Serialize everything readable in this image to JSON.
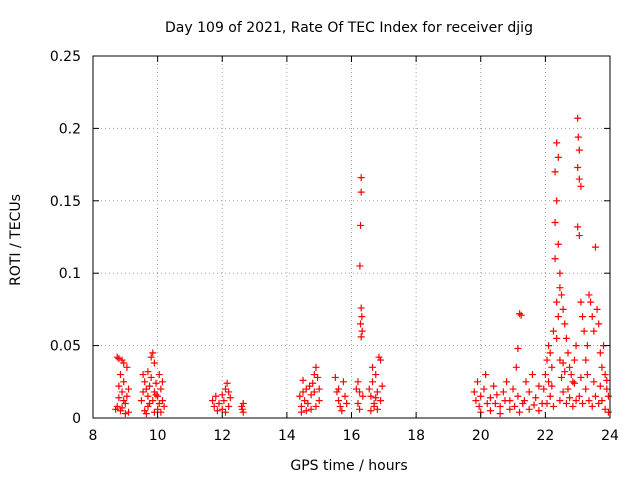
{
  "chart_data": {
    "type": "scatter",
    "title": "Day 109 of 2021, Rate Of TEC Index for receiver djig",
    "xlabel": "GPS time / hours",
    "ylabel": "ROTI / TECUs",
    "xlim": [
      8,
      24
    ],
    "ylim": [
      0,
      0.25
    ],
    "xticks": [
      8,
      10,
      12,
      14,
      16,
      18,
      20,
      22,
      24
    ],
    "xtick_labels": [
      "8",
      "10",
      "12",
      "14",
      "16",
      "18",
      "20",
      "22",
      "24"
    ],
    "yticks": [
      0,
      0.05,
      0.1,
      0.15,
      0.2,
      0.25
    ],
    "ytick_labels": [
      "0",
      "0.05",
      "0.1",
      "0.15",
      "0.2",
      "0.25"
    ],
    "grid": true,
    "marker": "+",
    "color": "#ff0000",
    "series": [
      {
        "name": "ROTI",
        "points": [
          [
            8.75,
            0.042
          ],
          [
            8.8,
            0.041
          ],
          [
            8.9,
            0.04
          ],
          [
            8.95,
            0.038
          ],
          [
            8.85,
            0.03
          ],
          [
            8.8,
            0.022
          ],
          [
            8.9,
            0.018
          ],
          [
            8.95,
            0.012
          ],
          [
            8.75,
            0.008
          ],
          [
            8.85,
            0.005
          ],
          [
            9.0,
            0.01
          ],
          [
            9.05,
            0.015
          ],
          [
            9.1,
            0.02
          ],
          [
            8.8,
            0.014
          ],
          [
            8.9,
            0.007
          ],
          [
            9.0,
            0.003
          ],
          [
            8.95,
            0.025
          ],
          [
            9.05,
            0.035
          ],
          [
            8.7,
            0.006
          ],
          [
            9.1,
            0.004
          ],
          [
            9.55,
            0.03
          ],
          [
            9.6,
            0.025
          ],
          [
            9.65,
            0.02
          ],
          [
            9.7,
            0.015
          ],
          [
            9.75,
            0.01
          ],
          [
            9.8,
            0.042
          ],
          [
            9.85,
            0.045
          ],
          [
            9.9,
            0.038
          ],
          [
            9.6,
            0.005
          ],
          [
            9.7,
            0.008
          ],
          [
            9.75,
            0.022
          ],
          [
            9.8,
            0.028
          ],
          [
            9.85,
            0.012
          ],
          [
            9.9,
            0.018
          ],
          [
            9.95,
            0.024
          ],
          [
            10.0,
            0.015
          ],
          [
            10.05,
            0.01
          ],
          [
            10.1,
            0.02
          ],
          [
            10.15,
            0.012
          ],
          [
            10.2,
            0.008
          ],
          [
            10.15,
            0.025
          ],
          [
            10.05,
            0.03
          ],
          [
            9.5,
            0.012
          ],
          [
            9.55,
            0.018
          ],
          [
            9.65,
            0.003
          ],
          [
            9.9,
            0.004
          ],
          [
            10.0,
            0.006
          ],
          [
            10.1,
            0.004
          ],
          [
            9.7,
            0.032
          ],
          [
            9.95,
            0.016
          ],
          [
            11.7,
            0.012
          ],
          [
            11.75,
            0.008
          ],
          [
            11.8,
            0.015
          ],
          [
            11.9,
            0.01
          ],
          [
            12.0,
            0.016
          ],
          [
            12.05,
            0.012
          ],
          [
            12.1,
            0.02
          ],
          [
            12.15,
            0.024
          ],
          [
            12.2,
            0.018
          ],
          [
            12.25,
            0.014
          ],
          [
            11.85,
            0.005
          ],
          [
            12.0,
            0.006
          ],
          [
            12.1,
            0.004
          ],
          [
            12.2,
            0.008
          ],
          [
            12.65,
            0.01
          ],
          [
            12.62,
            0.006
          ],
          [
            12.6,
            0.008
          ],
          [
            12.65,
            0.004
          ],
          [
            14.4,
            0.015
          ],
          [
            14.45,
            0.008
          ],
          [
            14.5,
            0.018
          ],
          [
            14.55,
            0.012
          ],
          [
            14.6,
            0.02
          ],
          [
            14.65,
            0.01
          ],
          [
            14.7,
            0.022
          ],
          [
            14.75,
            0.016
          ],
          [
            14.8,
            0.024
          ],
          [
            14.85,
            0.03
          ],
          [
            14.9,
            0.035
          ],
          [
            14.95,
            0.028
          ],
          [
            15.0,
            0.02
          ],
          [
            14.45,
            0.004
          ],
          [
            14.6,
            0.005
          ],
          [
            14.75,
            0.006
          ],
          [
            14.9,
            0.008
          ],
          [
            15.0,
            0.012
          ],
          [
            14.5,
            0.026
          ],
          [
            14.85,
            0.018
          ],
          [
            15.5,
            0.028
          ],
          [
            15.55,
            0.018
          ],
          [
            15.6,
            0.012
          ],
          [
            15.65,
            0.008
          ],
          [
            15.75,
            0.025
          ],
          [
            15.8,
            0.015
          ],
          [
            15.85,
            0.01
          ],
          [
            15.7,
            0.005
          ],
          [
            15.6,
            0.02
          ],
          [
            16.15,
            0.02
          ],
          [
            16.2,
            0.025
          ],
          [
            16.25,
            0.018
          ],
          [
            16.3,
            0.166
          ],
          [
            16.3,
            0.156
          ],
          [
            16.28,
            0.133
          ],
          [
            16.26,
            0.105
          ],
          [
            16.3,
            0.076
          ],
          [
            16.32,
            0.07
          ],
          [
            16.28,
            0.065
          ],
          [
            16.33,
            0.06
          ],
          [
            16.3,
            0.056
          ],
          [
            16.35,
            0.015
          ],
          [
            16.2,
            0.01
          ],
          [
            16.25,
            0.006
          ],
          [
            16.55,
            0.02
          ],
          [
            16.6,
            0.015
          ],
          [
            16.65,
            0.025
          ],
          [
            16.7,
            0.01
          ],
          [
            16.75,
            0.03
          ],
          [
            16.8,
            0.018
          ],
          [
            16.85,
            0.042
          ],
          [
            16.9,
            0.04
          ],
          [
            16.95,
            0.022
          ],
          [
            16.6,
            0.005
          ],
          [
            16.7,
            0.008
          ],
          [
            16.8,
            0.006
          ],
          [
            16.9,
            0.012
          ],
          [
            16.75,
            0.014
          ],
          [
            16.65,
            0.035
          ],
          [
            19.8,
            0.018
          ],
          [
            19.85,
            0.012
          ],
          [
            19.9,
            0.025
          ],
          [
            19.95,
            0.008
          ],
          [
            20.0,
            0.015
          ],
          [
            20.1,
            0.02
          ],
          [
            20.15,
            0.03
          ],
          [
            20.2,
            0.01
          ],
          [
            20.3,
            0.014
          ],
          [
            20.4,
            0.022
          ],
          [
            20.5,
            0.016
          ],
          [
            20.6,
            0.008
          ],
          [
            20.7,
            0.018
          ],
          [
            20.8,
            0.025
          ],
          [
            20.9,
            0.012
          ],
          [
            21.0,
            0.02
          ],
          [
            21.1,
            0.035
          ],
          [
            21.15,
            0.015
          ],
          [
            21.2,
            0.072
          ],
          [
            21.25,
            0.071
          ],
          [
            21.15,
            0.048
          ],
          [
            21.3,
            0.01
          ],
          [
            21.4,
            0.025
          ],
          [
            21.5,
            0.018
          ],
          [
            21.6,
            0.03
          ],
          [
            21.7,
            0.014
          ],
          [
            21.8,
            0.022
          ],
          [
            21.9,
            0.01
          ],
          [
            20.0,
            0.004
          ],
          [
            20.3,
            0.005
          ],
          [
            20.6,
            0.003
          ],
          [
            20.9,
            0.006
          ],
          [
            21.2,
            0.004
          ],
          [
            21.5,
            0.006
          ],
          [
            21.8,
            0.005
          ],
          [
            20.45,
            0.01
          ],
          [
            20.75,
            0.012
          ],
          [
            21.05,
            0.008
          ],
          [
            21.35,
            0.012
          ],
          [
            21.65,
            0.009
          ],
          [
            21.95,
            0.02
          ],
          [
            22.0,
            0.03
          ],
          [
            22.05,
            0.04
          ],
          [
            22.1,
            0.05
          ],
          [
            22.15,
            0.045
          ],
          [
            22.2,
            0.035
          ],
          [
            22.25,
            0.06
          ],
          [
            22.3,
            0.17
          ],
          [
            22.35,
            0.19
          ],
          [
            22.4,
            0.18
          ],
          [
            22.3,
            0.135
          ],
          [
            22.35,
            0.15
          ],
          [
            22.4,
            0.12
          ],
          [
            22.45,
            0.1
          ],
          [
            22.3,
            0.11
          ],
          [
            22.35,
            0.08
          ],
          [
            22.4,
            0.07
          ],
          [
            22.45,
            0.09
          ],
          [
            22.5,
            0.085
          ],
          [
            22.55,
            0.075
          ],
          [
            22.6,
            0.065
          ],
          [
            22.65,
            0.055
          ],
          [
            22.7,
            0.045
          ],
          [
            22.75,
            0.035
          ],
          [
            22.8,
            0.03
          ],
          [
            22.85,
            0.025
          ],
          [
            22.9,
            0.04
          ],
          [
            22.95,
            0.05
          ],
          [
            23.0,
            0.207
          ],
          [
            23.02,
            0.194
          ],
          [
            23.05,
            0.185
          ],
          [
            23.0,
            0.173
          ],
          [
            23.05,
            0.165
          ],
          [
            23.1,
            0.16
          ],
          [
            23.0,
            0.132
          ],
          [
            23.05,
            0.126
          ],
          [
            23.1,
            0.08
          ],
          [
            23.15,
            0.07
          ],
          [
            23.2,
            0.06
          ],
          [
            23.25,
            0.04
          ],
          [
            23.3,
            0.05
          ],
          [
            23.35,
            0.085
          ],
          [
            23.4,
            0.08
          ],
          [
            23.45,
            0.07
          ],
          [
            23.5,
            0.06
          ],
          [
            23.55,
            0.118
          ],
          [
            23.6,
            0.075
          ],
          [
            23.65,
            0.065
          ],
          [
            23.7,
            0.045
          ],
          [
            23.75,
            0.035
          ],
          [
            23.8,
            0.05
          ],
          [
            23.85,
            0.03
          ],
          [
            23.9,
            0.02
          ],
          [
            23.95,
            0.015
          ],
          [
            22.05,
            0.01
          ],
          [
            22.15,
            0.015
          ],
          [
            22.25,
            0.008
          ],
          [
            22.45,
            0.012
          ],
          [
            22.55,
            0.018
          ],
          [
            22.65,
            0.01
          ],
          [
            22.75,
            0.014
          ],
          [
            22.85,
            0.008
          ],
          [
            22.95,
            0.012
          ],
          [
            23.05,
            0.015
          ],
          [
            23.15,
            0.01
          ],
          [
            23.25,
            0.02
          ],
          [
            23.35,
            0.012
          ],
          [
            23.45,
            0.008
          ],
          [
            23.55,
            0.015
          ],
          [
            23.65,
            0.01
          ],
          [
            23.75,
            0.012
          ],
          [
            23.85,
            0.006
          ],
          [
            23.95,
            0.004
          ],
          [
            22.1,
            0.025
          ],
          [
            22.2,
            0.022
          ],
          [
            22.5,
            0.028
          ],
          [
            22.6,
            0.032
          ],
          [
            22.7,
            0.02
          ],
          [
            22.9,
            0.024
          ],
          [
            23.1,
            0.028
          ],
          [
            23.3,
            0.03
          ],
          [
            23.5,
            0.025
          ],
          [
            23.7,
            0.022
          ],
          [
            23.9,
            0.026
          ],
          [
            22.35,
            0.055
          ],
          [
            22.45,
            0.04
          ],
          [
            22.55,
            0.038
          ]
        ]
      }
    ]
  }
}
